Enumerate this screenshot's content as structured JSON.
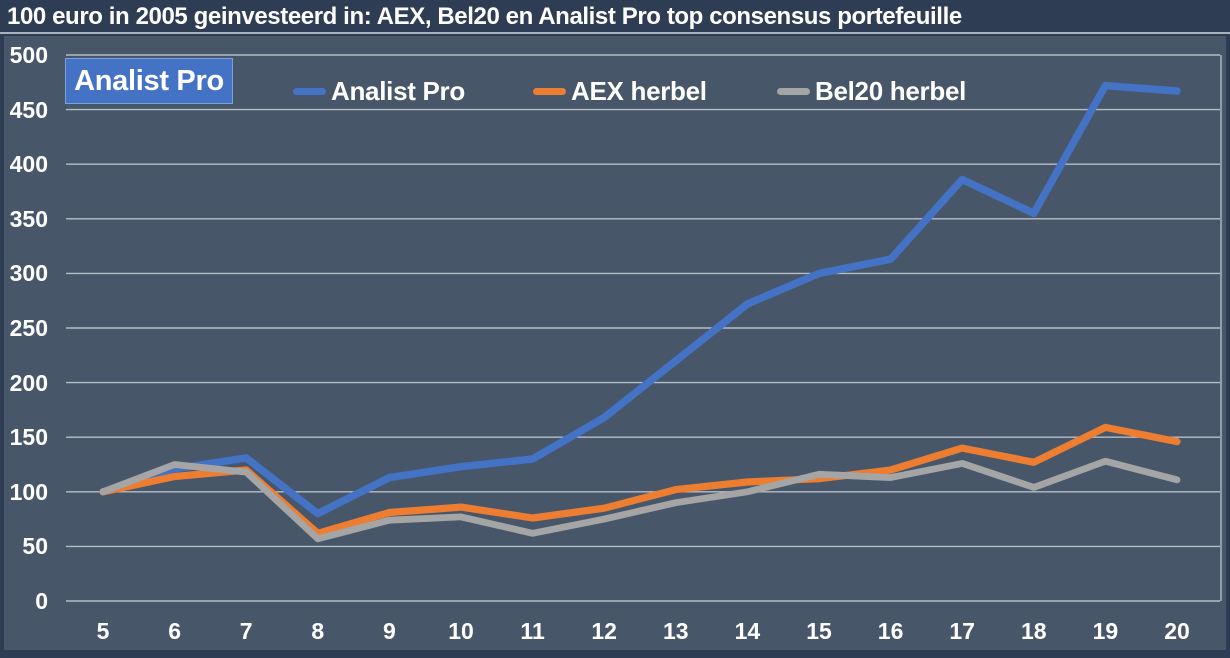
{
  "title": "100 euro in 2005 geinvesteerd in: AEX, Bel20 en Analist Pro top consensus portefeuille",
  "badge": {
    "label": "Analist Pro"
  },
  "chart_data": {
    "type": "line",
    "title": "100 euro in 2005 geinvesteerd in: AEX, Bel20 en Analist Pro top consensus portefeuille",
    "x": [
      5,
      6,
      7,
      8,
      9,
      10,
      11,
      12,
      13,
      14,
      15,
      16,
      17,
      18,
      19,
      20
    ],
    "xlabel": "",
    "ylabel": "",
    "ylim": [
      0,
      500
    ],
    "ytick_step": 50,
    "grid": true,
    "legend_position": "top",
    "colors": {
      "frame": "#2e3d53",
      "plot_background": "#475769",
      "gridline": "#c9cfd8",
      "text": "#ffffff",
      "accent": "#4472c4"
    },
    "series": [
      {
        "name": "Analist Pro",
        "color": "#4472c4",
        "values": [
          100,
          121,
          131,
          80,
          113,
          123,
          130,
          168,
          220,
          272,
          300,
          313,
          386,
          355,
          472,
          467
        ]
      },
      {
        "name": "AEX herbel",
        "color": "#ed7d31",
        "values": [
          100,
          114,
          120,
          62,
          81,
          86,
          76,
          85,
          102,
          109,
          112,
          120,
          140,
          127,
          159,
          146
        ]
      },
      {
        "name": "Bel20 herbel",
        "color": "#a5a5a5",
        "values": [
          100,
          125,
          118,
          57,
          74,
          77,
          62,
          75,
          90,
          100,
          116,
          113,
          126,
          104,
          128,
          111
        ]
      }
    ]
  }
}
